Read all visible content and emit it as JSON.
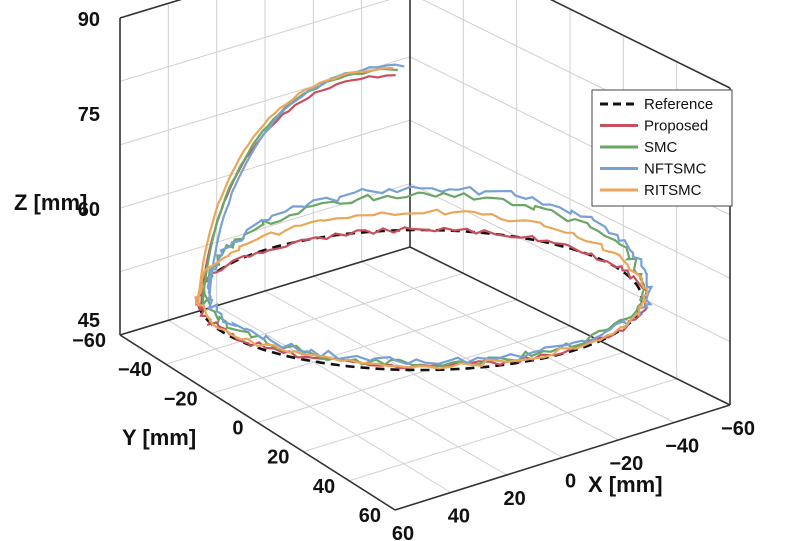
{
  "chart_data": {
    "type": "line3d",
    "title": "",
    "xlabel": "X [mm]",
    "ylabel": "Y [mm]",
    "zlabel": "Z [mm]",
    "x_ticks": [
      "60",
      "40",
      "20",
      "0",
      "−20",
      "−40",
      "−60"
    ],
    "y_ticks": [
      "−60",
      "−40",
      "−20",
      "0",
      "20",
      "40",
      "60"
    ],
    "z_ticks": [
      "90",
      "75",
      "60",
      "45"
    ],
    "legend": {
      "position": "top-right",
      "entries": [
        {
          "name": "Reference",
          "color": "#111111",
          "dash": true
        },
        {
          "name": "Proposed",
          "color": "#c8505e",
          "dash": false
        },
        {
          "name": "SMC",
          "color": "#6aa764",
          "dash": false
        },
        {
          "name": "NFTSMC",
          "color": "#77a1d6",
          "dash": false
        },
        {
          "name": "RITSMC",
          "color": "#e8a75a",
          "dash": false
        }
      ]
    },
    "series": [
      {
        "name": "Reference",
        "color": "#111111",
        "dash": true
      },
      {
        "name": "Proposed",
        "color": "#c8505e"
      },
      {
        "name": "SMC",
        "color": "#6aa764"
      },
      {
        "name": "NFTSMC",
        "color": "#77a1d6"
      },
      {
        "name": "RITSMC",
        "color": "#e8a75a"
      }
    ]
  }
}
